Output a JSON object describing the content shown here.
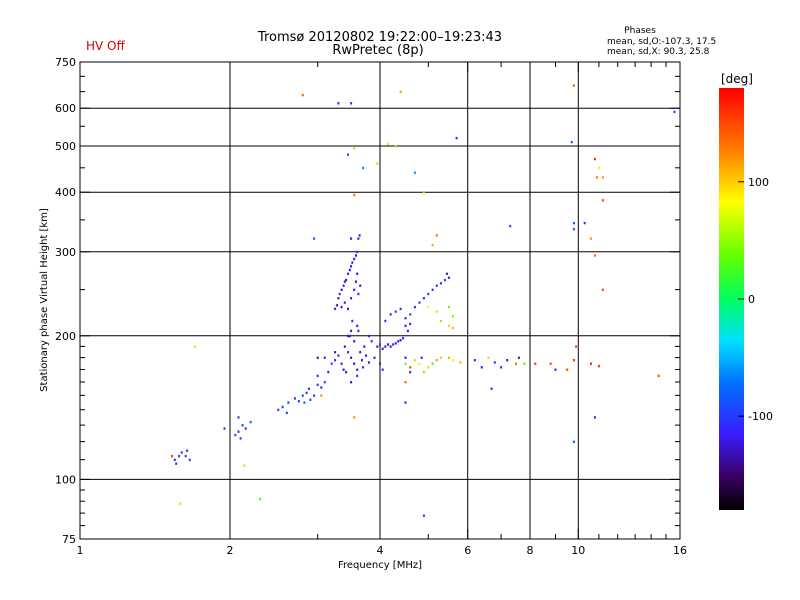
{
  "header": {
    "title_line1": "Tromsø 20120802 19:22:00–19:23:43",
    "title_line2": "RwPretec (8p)",
    "status": "HV Off",
    "phases_title": "Phases",
    "phases_o": "mean, sd,O:-107.3, 17.5",
    "phases_x": "mean, sd,X:  90.3, 25.8"
  },
  "colors": {
    "status": "#d40000",
    "grid": "#000000"
  },
  "chart_data": {
    "type": "scatter",
    "xlabel": "Frequency [MHz]",
    "ylabel": "Stationary phase Virtual Height [km]",
    "xscale": "log",
    "yscale": "log",
    "xlim": [
      1,
      16
    ],
    "ylim": [
      75,
      750
    ],
    "x_major_ticks": [
      1,
      2,
      4,
      6,
      8,
      10,
      16
    ],
    "x_minor_ticks": [
      3,
      5,
      7,
      9,
      11,
      12,
      13,
      14,
      15
    ],
    "y_major_ticks": [
      75,
      100,
      200,
      300,
      400,
      500,
      600,
      750
    ],
    "y_minor_ticks": [
      80,
      85,
      90,
      95,
      110,
      120,
      130,
      140,
      150,
      160,
      170,
      180,
      190,
      250,
      350,
      450,
      550,
      650,
      700
    ],
    "x_gridlines": [
      2,
      4,
      6,
      8,
      10
    ],
    "y_gridlines": [
      100,
      200,
      300,
      400,
      500,
      600
    ],
    "colorbar": {
      "label": "[deg]",
      "range": [
        -180,
        180
      ],
      "ticks": [
        100,
        0,
        -100
      ]
    },
    "points": [
      {
        "x": 1.53,
        "y": 112,
        "phase": 150
      },
      {
        "x": 1.55,
        "y": 110,
        "phase": -100
      },
      {
        "x": 1.56,
        "y": 108,
        "phase": -100
      },
      {
        "x": 1.58,
        "y": 112,
        "phase": -95
      },
      {
        "x": 1.6,
        "y": 114,
        "phase": -90
      },
      {
        "x": 1.63,
        "y": 112,
        "phase": -105
      },
      {
        "x": 1.66,
        "y": 110,
        "phase": -100
      },
      {
        "x": 1.64,
        "y": 115,
        "phase": -110
      },
      {
        "x": 1.7,
        "y": 190,
        "phase": 100
      },
      {
        "x": 1.59,
        "y": 89,
        "phase": 100
      },
      {
        "x": 1.95,
        "y": 128,
        "phase": -100
      },
      {
        "x": 2.05,
        "y": 124,
        "phase": -90
      },
      {
        "x": 2.08,
        "y": 126,
        "phase": -105
      },
      {
        "x": 2.1,
        "y": 122,
        "phase": -95
      },
      {
        "x": 2.12,
        "y": 130,
        "phase": -100
      },
      {
        "x": 2.15,
        "y": 128,
        "phase": -110
      },
      {
        "x": 2.08,
        "y": 135,
        "phase": -100
      },
      {
        "x": 2.2,
        "y": 132,
        "phase": -80
      },
      {
        "x": 2.14,
        "y": 107,
        "phase": 100
      },
      {
        "x": 2.3,
        "y": 91,
        "phase": 20
      },
      {
        "x": 2.5,
        "y": 140,
        "phase": -95
      },
      {
        "x": 2.55,
        "y": 142,
        "phase": -100
      },
      {
        "x": 2.6,
        "y": 138,
        "phase": -90
      },
      {
        "x": 2.62,
        "y": 145,
        "phase": -100
      },
      {
        "x": 2.7,
        "y": 148,
        "phase": -110
      },
      {
        "x": 2.75,
        "y": 146,
        "phase": -95
      },
      {
        "x": 2.8,
        "y": 150,
        "phase": -85
      },
      {
        "x": 2.82,
        "y": 145,
        "phase": -80
      },
      {
        "x": 2.85,
        "y": 152,
        "phase": -100
      },
      {
        "x": 2.9,
        "y": 147,
        "phase": -90
      },
      {
        "x": 2.88,
        "y": 155,
        "phase": -105
      },
      {
        "x": 2.95,
        "y": 150,
        "phase": -95
      },
      {
        "x": 3.0,
        "y": 158,
        "phase": -100
      },
      {
        "x": 3.05,
        "y": 156,
        "phase": -110
      },
      {
        "x": 3.1,
        "y": 160,
        "phase": -90
      },
      {
        "x": 3.0,
        "y": 165,
        "phase": -100
      },
      {
        "x": 3.15,
        "y": 168,
        "phase": -120
      },
      {
        "x": 3.2,
        "y": 175,
        "phase": -100
      },
      {
        "x": 3.1,
        "y": 180,
        "phase": -110
      },
      {
        "x": 3.25,
        "y": 185,
        "phase": -120
      },
      {
        "x": 3.0,
        "y": 180,
        "phase": -130
      },
      {
        "x": 2.95,
        "y": 320,
        "phase": -80
      },
      {
        "x": 3.05,
        "y": 150,
        "phase": 120
      },
      {
        "x": 3.3,
        "y": 240,
        "phase": -120
      },
      {
        "x": 3.32,
        "y": 245,
        "phase": -110
      },
      {
        "x": 3.35,
        "y": 250,
        "phase": -125
      },
      {
        "x": 3.38,
        "y": 255,
        "phase": -115
      },
      {
        "x": 3.4,
        "y": 260,
        "phase": -120
      },
      {
        "x": 3.42,
        "y": 262,
        "phase": -130
      },
      {
        "x": 3.45,
        "y": 270,
        "phase": -110
      },
      {
        "x": 3.48,
        "y": 275,
        "phase": -120
      },
      {
        "x": 3.5,
        "y": 280,
        "phase": -125
      },
      {
        "x": 3.52,
        "y": 285,
        "phase": -115
      },
      {
        "x": 3.55,
        "y": 290,
        "phase": -120
      },
      {
        "x": 3.58,
        "y": 295,
        "phase": -130
      },
      {
        "x": 3.6,
        "y": 300,
        "phase": -110
      },
      {
        "x": 3.62,
        "y": 320,
        "phase": -120
      },
      {
        "x": 3.64,
        "y": 325,
        "phase": -115
      },
      {
        "x": 3.35,
        "y": 230,
        "phase": -120
      },
      {
        "x": 3.4,
        "y": 235,
        "phase": -110
      },
      {
        "x": 3.45,
        "y": 228,
        "phase": -125
      },
      {
        "x": 3.5,
        "y": 240,
        "phase": -120
      },
      {
        "x": 3.55,
        "y": 250,
        "phase": -115
      },
      {
        "x": 3.58,
        "y": 260,
        "phase": -125
      },
      {
        "x": 3.6,
        "y": 270,
        "phase": -120
      },
      {
        "x": 3.62,
        "y": 245,
        "phase": -110
      },
      {
        "x": 3.65,
        "y": 255,
        "phase": -120
      },
      {
        "x": 3.28,
        "y": 232,
        "phase": -120
      },
      {
        "x": 3.25,
        "y": 228,
        "phase": -110
      },
      {
        "x": 3.55,
        "y": 395,
        "phase": 130
      },
      {
        "x": 3.5,
        "y": 320,
        "phase": -120
      },
      {
        "x": 3.5,
        "y": 205,
        "phase": -120
      },
      {
        "x": 3.52,
        "y": 215,
        "phase": -110
      },
      {
        "x": 3.48,
        "y": 200,
        "phase": -125
      },
      {
        "x": 3.55,
        "y": 195,
        "phase": -120
      },
      {
        "x": 3.6,
        "y": 210,
        "phase": -115
      },
      {
        "x": 3.62,
        "y": 205,
        "phase": -120
      },
      {
        "x": 3.4,
        "y": 190,
        "phase": -125
      },
      {
        "x": 3.45,
        "y": 185,
        "phase": -110
      },
      {
        "x": 3.5,
        "y": 180,
        "phase": -120
      },
      {
        "x": 3.55,
        "y": 175,
        "phase": -130
      },
      {
        "x": 3.6,
        "y": 170,
        "phase": -120
      },
      {
        "x": 3.35,
        "y": 175,
        "phase": -110
      },
      {
        "x": 3.38,
        "y": 170,
        "phase": -120
      },
      {
        "x": 3.42,
        "y": 168,
        "phase": -125
      },
      {
        "x": 3.65,
        "y": 185,
        "phase": -120
      },
      {
        "x": 3.68,
        "y": 178,
        "phase": -115
      },
      {
        "x": 3.7,
        "y": 172,
        "phase": -110
      },
      {
        "x": 3.72,
        "y": 190,
        "phase": -120
      },
      {
        "x": 3.75,
        "y": 182,
        "phase": -120
      },
      {
        "x": 3.8,
        "y": 176,
        "phase": -125
      },
      {
        "x": 3.3,
        "y": 182,
        "phase": -120
      },
      {
        "x": 3.25,
        "y": 178,
        "phase": -110
      },
      {
        "x": 3.45,
        "y": 200,
        "phase": -120
      },
      {
        "x": 3.5,
        "y": 160,
        "phase": -120
      },
      {
        "x": 3.6,
        "y": 165,
        "phase": -110
      },
      {
        "x": 3.55,
        "y": 135,
        "phase": 120
      },
      {
        "x": 3.8,
        "y": 200,
        "phase": -120
      },
      {
        "x": 3.85,
        "y": 195,
        "phase": -110
      },
      {
        "x": 3.95,
        "y": 190,
        "phase": -120
      },
      {
        "x": 4.0,
        "y": 192,
        "phase": -110
      },
      {
        "x": 4.05,
        "y": 188,
        "phase": -120
      },
      {
        "x": 4.1,
        "y": 190,
        "phase": -115
      },
      {
        "x": 4.15,
        "y": 192,
        "phase": -120
      },
      {
        "x": 4.2,
        "y": 190,
        "phase": -125
      },
      {
        "x": 4.25,
        "y": 192,
        "phase": -110
      },
      {
        "x": 4.3,
        "y": 193,
        "phase": -120
      },
      {
        "x": 4.35,
        "y": 195,
        "phase": -115
      },
      {
        "x": 4.4,
        "y": 196,
        "phase": -120
      },
      {
        "x": 4.45,
        "y": 198,
        "phase": -110
      },
      {
        "x": 4.0,
        "y": 175,
        "phase": -120
      },
      {
        "x": 4.05,
        "y": 170,
        "phase": -110
      },
      {
        "x": 3.9,
        "y": 180,
        "phase": -120
      },
      {
        "x": 4.1,
        "y": 215,
        "phase": -100
      },
      {
        "x": 4.2,
        "y": 222,
        "phase": -110
      },
      {
        "x": 4.3,
        "y": 225,
        "phase": -100
      },
      {
        "x": 4.4,
        "y": 228,
        "phase": -110
      },
      {
        "x": 4.5,
        "y": 218,
        "phase": -100
      },
      {
        "x": 4.6,
        "y": 222,
        "phase": -90
      },
      {
        "x": 4.7,
        "y": 230,
        "phase": -110
      },
      {
        "x": 4.5,
        "y": 210,
        "phase": -120
      },
      {
        "x": 4.6,
        "y": 212,
        "phase": -110
      },
      {
        "x": 4.55,
        "y": 205,
        "phase": -120
      },
      {
        "x": 4.8,
        "y": 235,
        "phase": -100
      },
      {
        "x": 4.9,
        "y": 240,
        "phase": -110
      },
      {
        "x": 5.0,
        "y": 245,
        "phase": -100
      },
      {
        "x": 5.1,
        "y": 250,
        "phase": -110
      },
      {
        "x": 5.2,
        "y": 255,
        "phase": -100
      },
      {
        "x": 5.3,
        "y": 258,
        "phase": -110
      },
      {
        "x": 5.4,
        "y": 262,
        "phase": -100
      },
      {
        "x": 5.5,
        "y": 265,
        "phase": -110
      },
      {
        "x": 5.45,
        "y": 270,
        "phase": -120
      },
      {
        "x": 5.0,
        "y": 230,
        "phase": 80
      },
      {
        "x": 5.2,
        "y": 225,
        "phase": 60
      },
      {
        "x": 5.3,
        "y": 215,
        "phase": 50
      },
      {
        "x": 5.5,
        "y": 230,
        "phase": 30
      },
      {
        "x": 5.6,
        "y": 220,
        "phase": 40
      },
      {
        "x": 5.5,
        "y": 210,
        "phase": 100
      },
      {
        "x": 5.6,
        "y": 208,
        "phase": 110
      },
      {
        "x": 4.5,
        "y": 180,
        "phase": -120
      },
      {
        "x": 4.5,
        "y": 175,
        "phase": 30
      },
      {
        "x": 4.6,
        "y": 172,
        "phase": 150
      },
      {
        "x": 4.6,
        "y": 168,
        "phase": -120
      },
      {
        "x": 4.7,
        "y": 178,
        "phase": 100
      },
      {
        "x": 4.8,
        "y": 175,
        "phase": 80
      },
      {
        "x": 4.85,
        "y": 180,
        "phase": -110
      },
      {
        "x": 4.9,
        "y": 168,
        "phase": 40
      },
      {
        "x": 5.0,
        "y": 172,
        "phase": 60
      },
      {
        "x": 5.1,
        "y": 175,
        "phase": 20
      },
      {
        "x": 5.2,
        "y": 178,
        "phase": 120
      },
      {
        "x": 5.3,
        "y": 180,
        "phase": 100
      },
      {
        "x": 5.5,
        "y": 180,
        "phase": 110
      },
      {
        "x": 5.6,
        "y": 178,
        "phase": 90
      },
      {
        "x": 5.8,
        "y": 176,
        "phase": 110
      },
      {
        "x": 4.5,
        "y": 145,
        "phase": -110
      },
      {
        "x": 4.5,
        "y": 160,
        "phase": 140
      },
      {
        "x": 6.2,
        "y": 178,
        "phase": -110
      },
      {
        "x": 6.4,
        "y": 172,
        "phase": -120
      },
      {
        "x": 6.6,
        "y": 180,
        "phase": 100
      },
      {
        "x": 6.8,
        "y": 176,
        "phase": -100
      },
      {
        "x": 7.0,
        "y": 172,
        "phase": -110
      },
      {
        "x": 7.2,
        "y": 178,
        "phase": -120
      },
      {
        "x": 7.5,
        "y": 175,
        "phase": 130
      },
      {
        "x": 7.6,
        "y": 180,
        "phase": -120
      },
      {
        "x": 7.8,
        "y": 175,
        "phase": 20
      },
      {
        "x": 8.2,
        "y": 175,
        "phase": 160
      },
      {
        "x": 8.8,
        "y": 175,
        "phase": 150
      },
      {
        "x": 9.0,
        "y": 170,
        "phase": -110
      },
      {
        "x": 9.5,
        "y": 170,
        "phase": 150
      },
      {
        "x": 9.8,
        "y": 178,
        "phase": 160
      },
      {
        "x": 9.9,
        "y": 190,
        "phase": 155
      },
      {
        "x": 10.6,
        "y": 175,
        "phase": 170
      },
      {
        "x": 11.0,
        "y": 173,
        "phase": 160
      },
      {
        "x": 14.5,
        "y": 165,
        "phase": 150
      },
      {
        "x": 6.7,
        "y": 155,
        "phase": -100
      },
      {
        "x": 7.3,
        "y": 340,
        "phase": -90
      },
      {
        "x": 2.8,
        "y": 640,
        "phase": 140
      },
      {
        "x": 3.3,
        "y": 615,
        "phase": -110
      },
      {
        "x": 3.5,
        "y": 615,
        "phase": -100
      },
      {
        "x": 3.45,
        "y": 480,
        "phase": -80
      },
      {
        "x": 3.55,
        "y": 495,
        "phase": 100
      },
      {
        "x": 3.7,
        "y": 450,
        "phase": -60
      },
      {
        "x": 3.95,
        "y": 460,
        "phase": 100
      },
      {
        "x": 4.15,
        "y": 505,
        "phase": 60
      },
      {
        "x": 4.3,
        "y": 500,
        "phase": 100
      },
      {
        "x": 4.4,
        "y": 650,
        "phase": 120
      },
      {
        "x": 4.7,
        "y": 440,
        "phase": -60
      },
      {
        "x": 4.9,
        "y": 400,
        "phase": 100
      },
      {
        "x": 5.1,
        "y": 310,
        "phase": 110
      },
      {
        "x": 5.2,
        "y": 325,
        "phase": 130
      },
      {
        "x": 5.7,
        "y": 520,
        "phase": -110
      },
      {
        "x": 4.9,
        "y": 84,
        "phase": -100
      },
      {
        "x": 9.8,
        "y": 670,
        "phase": 140
      },
      {
        "x": 9.7,
        "y": 510,
        "phase": -80
      },
      {
        "x": 9.8,
        "y": 345,
        "phase": -80
      },
      {
        "x": 9.8,
        "y": 335,
        "phase": -90
      },
      {
        "x": 10.3,
        "y": 345,
        "phase": -110
      },
      {
        "x": 10.8,
        "y": 470,
        "phase": 160
      },
      {
        "x": 11.0,
        "y": 450,
        "phase": 90
      },
      {
        "x": 10.9,
        "y": 430,
        "phase": 130
      },
      {
        "x": 11.2,
        "y": 430,
        "phase": 120
      },
      {
        "x": 11.2,
        "y": 385,
        "phase": 150
      },
      {
        "x": 10.6,
        "y": 320,
        "phase": 120
      },
      {
        "x": 10.8,
        "y": 295,
        "phase": 140
      },
      {
        "x": 11.2,
        "y": 250,
        "phase": 150
      },
      {
        "x": 10.8,
        "y": 135,
        "phase": -110
      },
      {
        "x": 9.8,
        "y": 120,
        "phase": -80
      },
      {
        "x": 15.6,
        "y": 590,
        "phase": -100
      }
    ]
  }
}
